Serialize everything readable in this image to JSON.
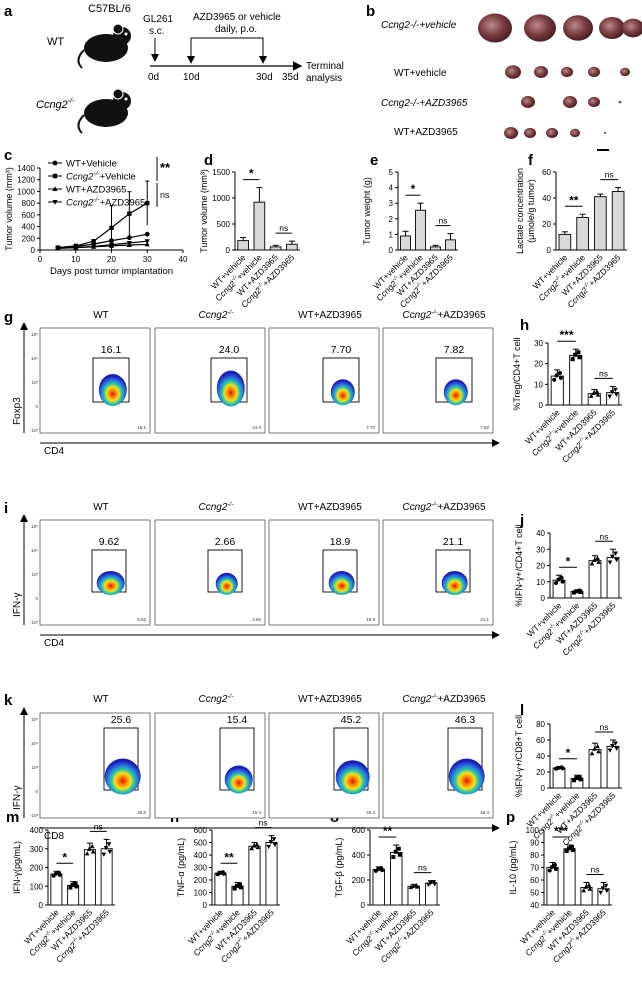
{
  "panel_labels": [
    "a",
    "b",
    "c",
    "d",
    "e",
    "f",
    "g",
    "h",
    "i",
    "j",
    "k",
    "l",
    "m",
    "n",
    "o",
    "p"
  ],
  "schematic": {
    "strain": "C57BL/6",
    "wt": "WT",
    "ko": "Ccng2",
    "ko_sup": "-/-",
    "cell": "GL261",
    "route": "s.c.",
    "treatment": "AZD3965 or vehicle",
    "schedule": "daily, p.o.",
    "days": [
      "0d",
      "10d",
      "30d",
      "35d"
    ],
    "terminal_line1": "Terminal",
    "terminal_line2": "analysis"
  },
  "tumor_rows": [
    "Ccng2-/-+vehicle",
    "WT+vehicle",
    "Ccng2-/-+AZD3965",
    "WT+AZD3965"
  ],
  "group_labels": [
    "WT+vehicle",
    "Ccng2-/-+vehicle",
    "WT+AZD3965",
    "Ccng2-/-+AZD3965"
  ],
  "legend_c": [
    "WT+Vehicle",
    "Ccng2-/-+Vehicle",
    "WT+AZD3965",
    "Ccng2-/-+AZD3965"
  ],
  "sig": {
    "two": "**",
    "one": "*",
    "three": "***",
    "ns": "ns"
  },
  "chart_data": [
    {
      "id": "c",
      "type": "line",
      "xlabel": "Days post tumor implantation",
      "ylabel": "Tumor volume (mm³)",
      "xlim": [
        0,
        40
      ],
      "ylim": [
        0,
        1400
      ],
      "xticks": [
        0,
        10,
        20,
        30,
        40
      ],
      "yticks": [
        0,
        200,
        400,
        600,
        800,
        1000,
        1200,
        1400
      ],
      "x": [
        5,
        10,
        15,
        20,
        25,
        30
      ],
      "series": [
        {
          "name": "WT+Vehicle",
          "values": [
            40,
            60,
            100,
            160,
            210,
            270
          ]
        },
        {
          "name": "Ccng2-/-+Vehicle",
          "values": [
            40,
            70,
            150,
            380,
            620,
            800
          ]
        },
        {
          "name": "WT+AZD3965",
          "values": [
            30,
            40,
            55,
            70,
            85,
            95
          ]
        },
        {
          "name": "Ccng2-/-+AZD3965",
          "values": [
            30,
            40,
            60,
            90,
            120,
            150
          ]
        }
      ]
    },
    {
      "id": "d",
      "type": "bar",
      "ylabel": "Tumor volume (mm³)",
      "categories": [
        "WT+vehicle",
        "Ccng2-/-+vehicle",
        "WT+AZD3965",
        "Ccng2-/-+AZD3965"
      ],
      "values": [
        180,
        920,
        60,
        110
      ],
      "errors": [
        60,
        280,
        30,
        60
      ],
      "ylim": [
        0,
        1500
      ],
      "yticks": [
        0,
        500,
        1000,
        1500
      ]
    },
    {
      "id": "e",
      "type": "bar",
      "ylabel": "Tumor weight (g)",
      "categories": [
        "WT+vehicle",
        "Ccng2-/-+vehicle",
        "WT+AZD3965",
        "Ccng2-/-+AZD3965"
      ],
      "values": [
        0.9,
        2.55,
        0.2,
        0.65
      ],
      "errors": [
        0.3,
        0.45,
        0.1,
        0.4
      ],
      "ylim": [
        0,
        5
      ],
      "yticks": [
        0,
        1,
        2,
        3,
        4,
        5
      ]
    },
    {
      "id": "f",
      "type": "bar",
      "ylabel": "Lactate concentration (μmole/g tumor)",
      "categories": [
        "WT+vehicle",
        "Ccng2-/-+vehicle",
        "WT+AZD3965",
        "Ccng2-/-+AZD3965"
      ],
      "values": [
        12,
        25,
        41,
        45
      ],
      "errors": [
        2,
        2.5,
        2,
        3
      ],
      "ylim": [
        0,
        60
      ],
      "yticks": [
        0,
        20,
        40,
        60
      ]
    },
    {
      "id": "h",
      "type": "bar",
      "ylabel": "%Treg/CD4+T cell",
      "categories": [
        "WT+vehicle",
        "Ccng2-/-+vehicle",
        "WT+AZD3965",
        "Ccng2-/-+AZD3965"
      ],
      "values": [
        14,
        24,
        5.5,
        6
      ],
      "errors": [
        3,
        3,
        2,
        3
      ],
      "ylim": [
        0,
        30
      ],
      "yticks": [
        0,
        10,
        20,
        30
      ]
    },
    {
      "id": "j",
      "type": "bar",
      "ylabel": "%IFN-γ+/CD4+T cell",
      "categories": [
        "WT+vehicle",
        "Ccng2-/-+vehicle",
        "WT+AZD3965",
        "Ccng2-/-+AZD3965"
      ],
      "values": [
        11,
        4,
        23,
        25
      ],
      "errors": [
        3,
        1,
        3,
        5
      ],
      "ylim": [
        0,
        40
      ],
      "yticks": [
        0,
        10,
        20,
        30,
        40
      ]
    },
    {
      "id": "l",
      "type": "bar",
      "ylabel": "%IFN-γ+/CD8+T cell",
      "categories": [
        "WT+vehicle",
        "Ccng2-/-+vehicle",
        "WT+AZD3965",
        "Ccng2-/-+AZD3965"
      ],
      "values": [
        25,
        12,
        48,
        52
      ],
      "errors": [
        1.5,
        4,
        8,
        8
      ],
      "ylim": [
        0,
        80
      ],
      "yticks": [
        0,
        20,
        40,
        60,
        80
      ]
    },
    {
      "id": "m",
      "type": "bar",
      "ylabel": "IFN-γ(pg/mL)",
      "categories": [
        "WT+vehicle",
        "Ccng2-/-+vehicle",
        "WT+AZD3965",
        "Ccng2-/-+AZD3965"
      ],
      "values": [
        165,
        105,
        295,
        300
      ],
      "errors": [
        15,
        20,
        35,
        50
      ],
      "ylim": [
        0,
        400
      ],
      "yticks": [
        0,
        100,
        200,
        300,
        400
      ]
    },
    {
      "id": "n",
      "type": "bar",
      "ylabel": "TNF-α (pg/mL)",
      "categories": [
        "WT+vehicle",
        "Ccng2-/-+vehicle",
        "WT+AZD3965",
        "Ccng2-/-+AZD3965"
      ],
      "values": [
        255,
        150,
        470,
        500
      ],
      "errors": [
        15,
        30,
        30,
        55
      ],
      "ylim": [
        0,
        600
      ],
      "yticks": [
        0,
        100,
        200,
        300,
        400,
        500,
        600
      ]
    },
    {
      "id": "o",
      "type": "bar",
      "ylabel": "TGF-β (pg/mL)",
      "categories": [
        "WT+vehicle",
        "Ccng2-/-+vehicle",
        "WT+AZD3965",
        "Ccng2-/-+AZD3965"
      ],
      "values": [
        285,
        420,
        150,
        175
      ],
      "errors": [
        20,
        60,
        15,
        20
      ],
      "ylim": [
        0,
        600
      ],
      "yticks": [
        0,
        200,
        400,
        600
      ]
    },
    {
      "id": "p",
      "type": "bar",
      "ylabel": "IL-10 (pg/mL)",
      "categories": [
        "WT+vehicle",
        "Ccng2-/-+vehicle",
        "WT+AZD3965",
        "Ccng2-/-+AZD3965"
      ],
      "values": [
        70,
        85,
        54,
        53
      ],
      "errors": [
        4,
        3,
        4,
        5
      ],
      "ylim": [
        40,
        100
      ],
      "yticks": [
        40,
        50,
        60,
        70,
        80,
        90,
        100
      ]
    }
  ],
  "flow": {
    "groups": [
      "WT",
      "Ccng2-/-",
      "WT+AZD3965",
      "Ccng2-/-+AZD3965"
    ],
    "rows": [
      {
        "id": "g",
        "ylabel": "Foxp3",
        "xlabel": "CD4",
        "values": [
          "16.1",
          "24.0",
          "7.70",
          "7.82"
        ]
      },
      {
        "id": "i",
        "ylabel": "IFN-γ",
        "xlabel": "CD4",
        "values": [
          "9.62",
          "2.66",
          "18.9",
          "21.1"
        ]
      },
      {
        "id": "k",
        "ylabel": "IFN-γ",
        "xlabel": "CD8",
        "values": [
          "25.6",
          "15.4",
          "45.2",
          "46.3"
        ]
      }
    ],
    "axis_ticks": [
      "10⁵",
      "10⁴",
      "10³",
      "0",
      "-10³"
    ]
  }
}
